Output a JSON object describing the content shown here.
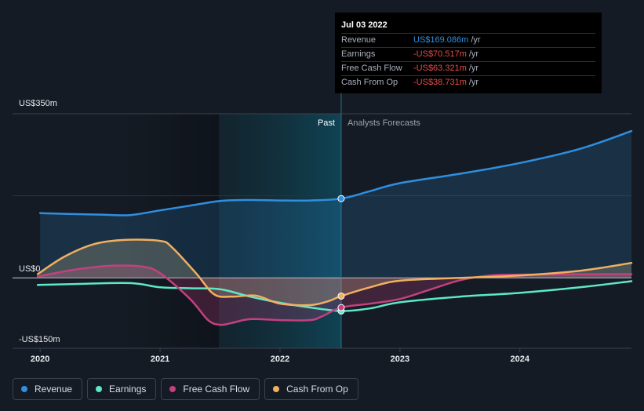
{
  "chart_data": {
    "type": "line",
    "y_axis": {
      "unit_labels": [
        "US$350m",
        "US$0",
        "-US$150m"
      ],
      "ticks": [
        350,
        0,
        -150
      ],
      "ylim": [
        -150,
        350
      ]
    },
    "x_axis": {
      "ticks": [
        "2020",
        "2021",
        "2022",
        "2023",
        "2024"
      ],
      "tick_values": [
        2020.0,
        2021.0,
        2022.0,
        2023.0,
        2024.0
      ],
      "xlim": [
        2019.77,
        2024.93
      ]
    },
    "past_label": "Past",
    "forecast_label": "Analysts Forecasts",
    "divider_x": 2022.51,
    "highlight_start_x": 2021.49,
    "series": [
      {
        "name": "Revenue",
        "color": "#2e8fe0",
        "points": [
          [
            2020.0,
            138
          ],
          [
            2020.3,
            136
          ],
          [
            2020.5,
            135
          ],
          [
            2020.75,
            134
          ],
          [
            2021.0,
            144
          ],
          [
            2021.25,
            154
          ],
          [
            2021.5,
            164
          ],
          [
            2021.75,
            166
          ],
          [
            2022.0,
            165
          ],
          [
            2022.25,
            165
          ],
          [
            2022.51,
            169
          ],
          [
            2022.75,
            185
          ],
          [
            2023.0,
            202
          ],
          [
            2023.5,
            222
          ],
          [
            2024.0,
            245
          ],
          [
            2024.5,
            275
          ],
          [
            2024.93,
            313
          ]
        ]
      },
      {
        "name": "Earnings",
        "color": "#5ee8c5",
        "points": [
          [
            2019.98,
            -15
          ],
          [
            2020.3,
            -13
          ],
          [
            2020.75,
            -11
          ],
          [
            2021.0,
            -20
          ],
          [
            2021.25,
            -22
          ],
          [
            2021.5,
            -24
          ],
          [
            2021.75,
            -40
          ],
          [
            2022.0,
            -53
          ],
          [
            2022.25,
            -63
          ],
          [
            2022.51,
            -70.5
          ],
          [
            2022.75,
            -65
          ],
          [
            2023.0,
            -52
          ],
          [
            2023.5,
            -40
          ],
          [
            2024.0,
            -32
          ],
          [
            2024.5,
            -20
          ],
          [
            2024.93,
            -7
          ]
        ]
      },
      {
        "name": "Free Cash Flow",
        "color": "#c2417f",
        "points": [
          [
            2019.98,
            3
          ],
          [
            2020.3,
            18
          ],
          [
            2020.6,
            26
          ],
          [
            2020.85,
            24
          ],
          [
            2021.0,
            10
          ],
          [
            2021.25,
            -45
          ],
          [
            2021.4,
            -90
          ],
          [
            2021.5,
            -100
          ],
          [
            2021.6,
            -96
          ],
          [
            2021.75,
            -88
          ],
          [
            2022.0,
            -90
          ],
          [
            2022.25,
            -90
          ],
          [
            2022.35,
            -82
          ],
          [
            2022.51,
            -63.3
          ],
          [
            2022.75,
            -55
          ],
          [
            2023.0,
            -45
          ],
          [
            2023.25,
            -25
          ],
          [
            2023.5,
            -5
          ],
          [
            2023.75,
            5
          ],
          [
            2024.0,
            7
          ],
          [
            2024.93,
            8
          ]
        ]
      },
      {
        "name": "Cash From Op",
        "color": "#f0b060",
        "points": [
          [
            2019.98,
            8
          ],
          [
            2020.2,
            45
          ],
          [
            2020.45,
            72
          ],
          [
            2020.7,
            81
          ],
          [
            2021.0,
            79
          ],
          [
            2021.1,
            65
          ],
          [
            2021.3,
            10
          ],
          [
            2021.45,
            -35
          ],
          [
            2021.6,
            -40
          ],
          [
            2021.8,
            -38
          ],
          [
            2022.0,
            -55
          ],
          [
            2022.25,
            -58
          ],
          [
            2022.4,
            -50
          ],
          [
            2022.51,
            -38.7
          ],
          [
            2022.75,
            -20
          ],
          [
            2023.0,
            -6
          ],
          [
            2023.5,
            0
          ],
          [
            2024.0,
            5
          ],
          [
            2024.5,
            15
          ],
          [
            2024.93,
            32
          ]
        ]
      }
    ],
    "markers_x": 2022.51
  },
  "tooltip": {
    "date": "Jul 03 2022",
    "rows": [
      {
        "label": "Revenue",
        "value": "US$169.086m",
        "unit": "/yr",
        "color": "#2e8fe0"
      },
      {
        "label": "Earnings",
        "value": "-US$70.517m",
        "unit": "/yr",
        "color": "#e84a4a"
      },
      {
        "label": "Free Cash Flow",
        "value": "-US$63.321m",
        "unit": "/yr",
        "color": "#e84a4a"
      },
      {
        "label": "Cash From Op",
        "value": "-US$38.731m",
        "unit": "/yr",
        "color": "#e84a4a"
      }
    ]
  },
  "legend": [
    {
      "label": "Revenue",
      "color": "#2e8fe0"
    },
    {
      "label": "Earnings",
      "color": "#5ee8c5"
    },
    {
      "label": "Free Cash Flow",
      "color": "#c2417f"
    },
    {
      "label": "Cash From Op",
      "color": "#f0b060"
    }
  ]
}
